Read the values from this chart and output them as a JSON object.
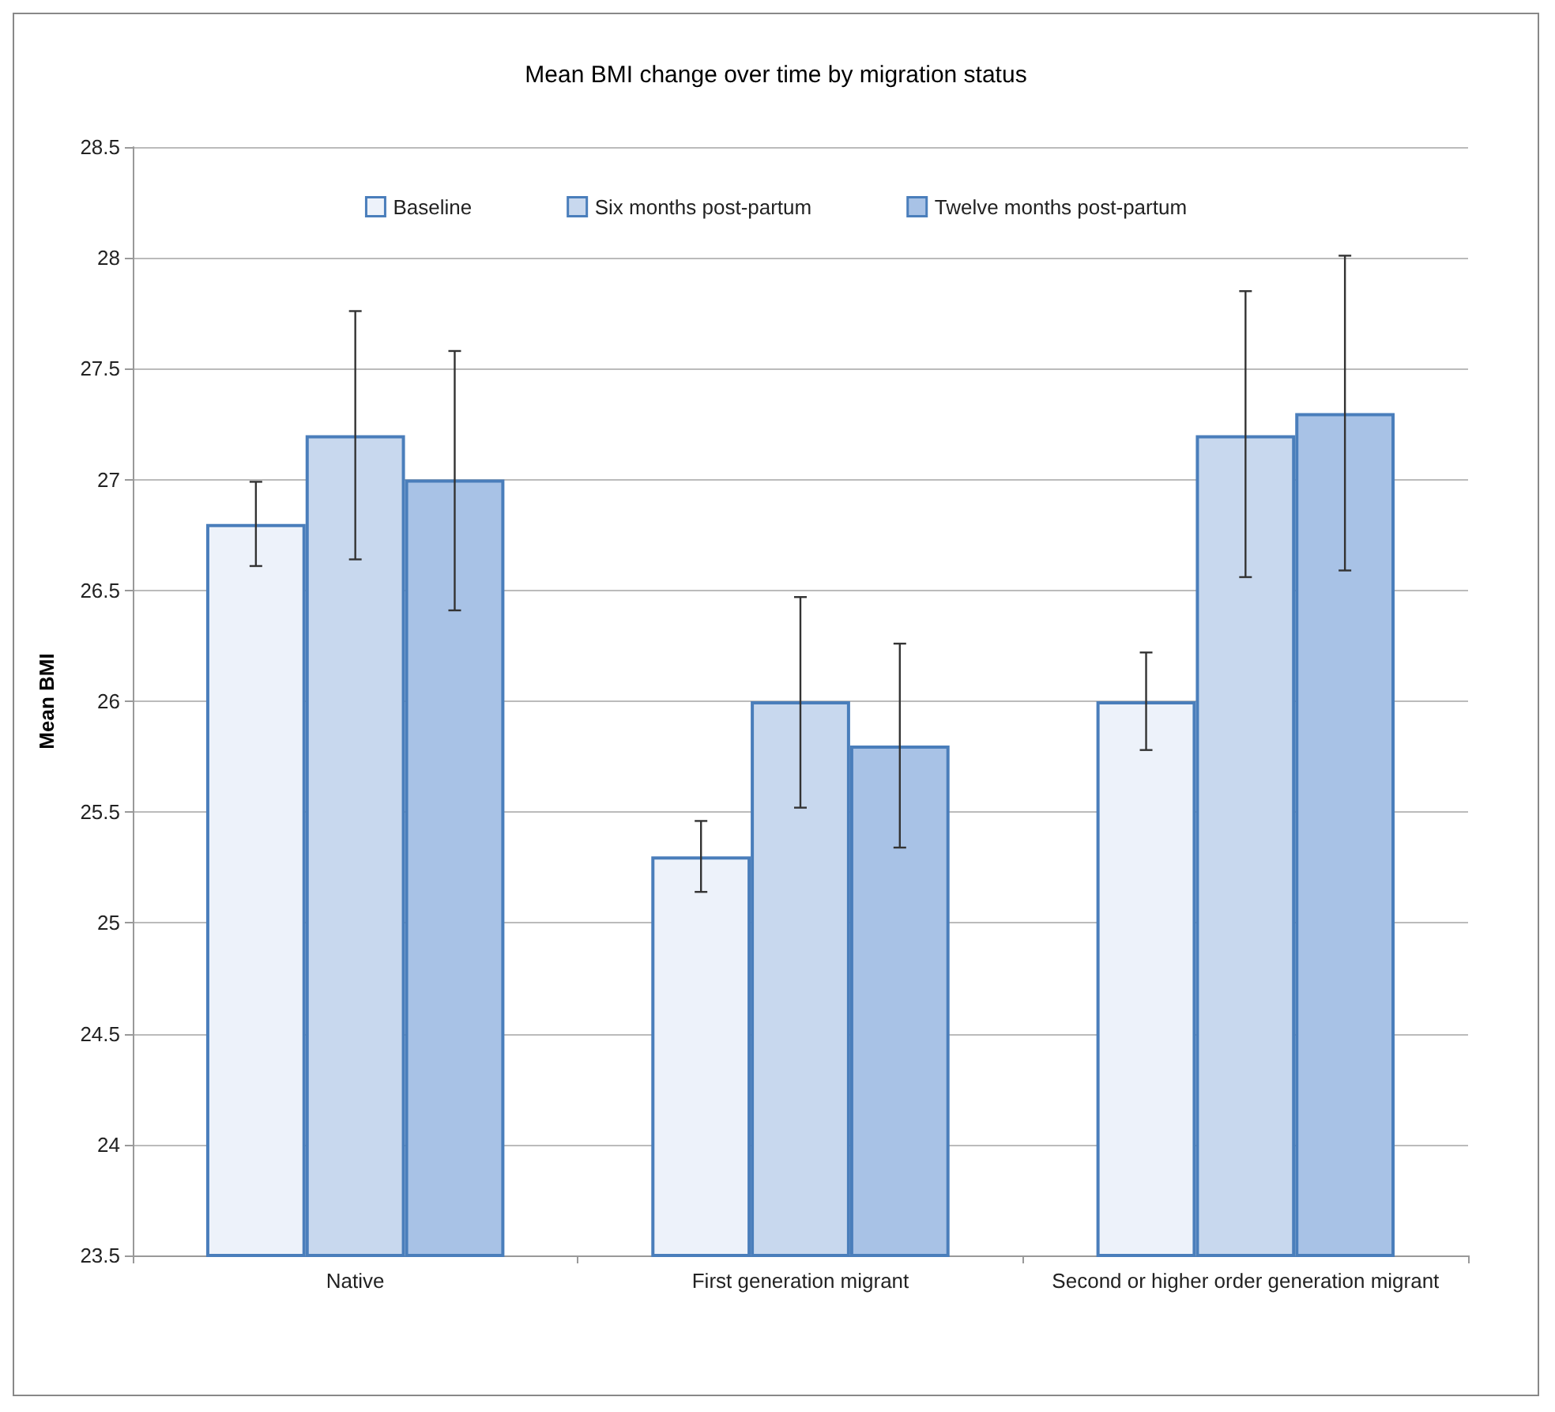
{
  "chart_data": {
    "type": "bar",
    "title": "Mean BMI change over time by migration status",
    "ylabel": "Mean BMI",
    "categories": [
      "Native",
      "First generation migrant",
      "Second or higher order generation migrant"
    ],
    "series": [
      {
        "name": "Baseline",
        "color": "#edf2fa",
        "values": [
          26.8,
          25.3,
          26.0
        ],
        "errors": [
          [
            26.61,
            26.99
          ],
          [
            25.14,
            25.46
          ],
          [
            25.78,
            26.22
          ]
        ]
      },
      {
        "name": "Six months post-partum",
        "color": "#c8d8ee",
        "values": [
          27.2,
          26.0,
          27.2
        ],
        "errors": [
          [
            26.64,
            27.76
          ],
          [
            25.52,
            26.47
          ],
          [
            26.56,
            27.85
          ]
        ]
      },
      {
        "name": "Twelve months post-partum",
        "color": "#a8c2e6",
        "values": [
          27.0,
          25.8,
          27.3
        ],
        "errors": [
          [
            26.41,
            27.58
          ],
          [
            25.34,
            26.26
          ],
          [
            26.59,
            28.01
          ]
        ]
      }
    ],
    "ylim": [
      23.5,
      28.5
    ],
    "yticks": [
      23.5,
      24,
      24.5,
      25,
      25.5,
      26,
      26.5,
      27,
      27.5,
      28,
      28.5
    ],
    "grid": "y",
    "legend": "top"
  }
}
